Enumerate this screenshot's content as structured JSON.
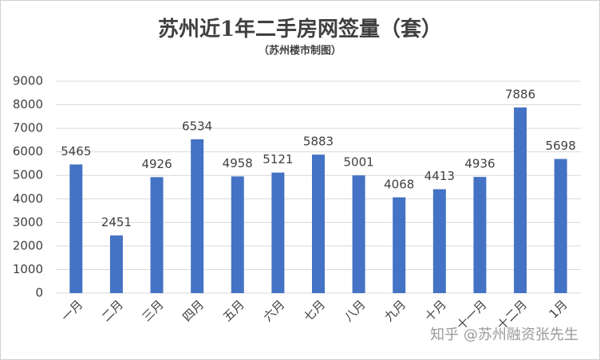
{
  "chart_data": {
    "type": "bar",
    "title": "苏州近1年二手房网签量（套）",
    "subtitle": "（苏州楼市制图）",
    "categories": [
      "一月",
      "二月",
      "三月",
      "四月",
      "五月",
      "六月",
      "七月",
      "八月",
      "九月",
      "十月",
      "十一月",
      "十二月",
      "1月"
    ],
    "values": [
      5465,
      2451,
      4926,
      6534,
      4958,
      5121,
      5883,
      5001,
      4068,
      4413,
      4936,
      7886,
      5698
    ],
    "color": "#4472c4",
    "ylim": [
      0,
      9000
    ],
    "yticks": [
      0,
      1000,
      2000,
      3000,
      4000,
      5000,
      6000,
      7000,
      8000,
      9000
    ],
    "grid": true,
    "watermark": "知乎 @苏州融资张先生"
  }
}
